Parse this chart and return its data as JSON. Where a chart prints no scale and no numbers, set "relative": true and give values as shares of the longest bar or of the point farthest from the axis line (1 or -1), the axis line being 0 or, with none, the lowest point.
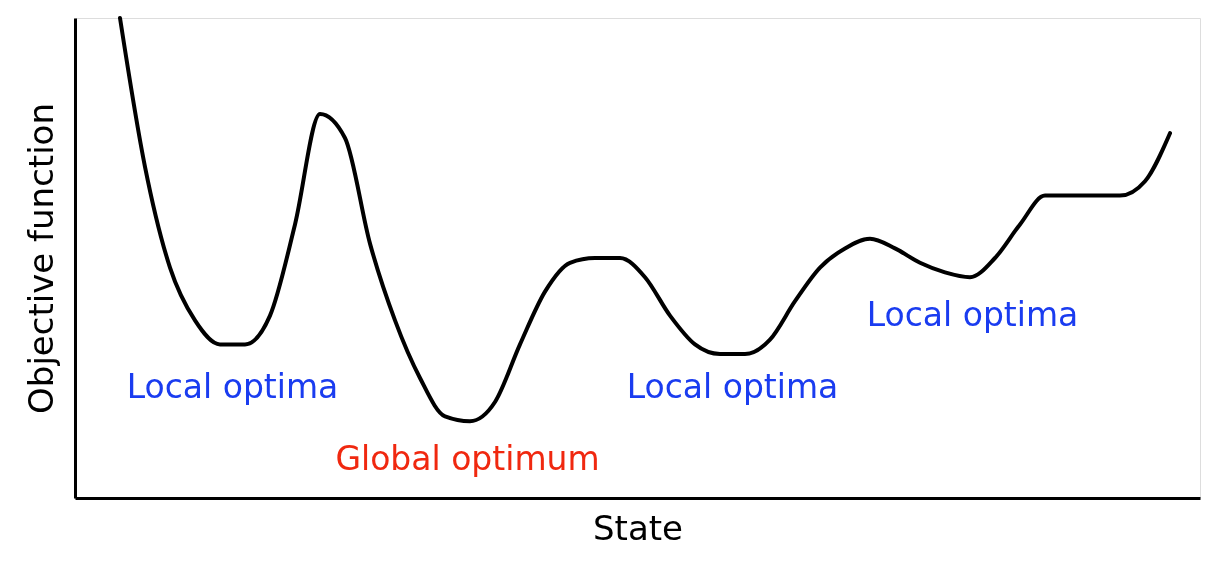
{
  "chart_data": {
    "type": "line",
    "relative": true,
    "xlabel": "State",
    "ylabel": "Objective function",
    "categories": [
      null,
      null,
      null,
      null,
      null,
      null,
      null,
      null,
      null,
      null,
      null,
      null,
      null,
      null,
      null,
      null,
      null,
      null,
      null,
      null,
      null,
      null,
      null,
      null,
      null,
      null,
      null,
      null,
      null,
      null,
      null,
      null,
      null,
      null,
      null,
      null,
      null,
      null,
      null,
      null,
      null,
      null,
      null
    ],
    "series": [
      {
        "color": "#000000",
        "values": [
          1.0,
          0.69,
          0.48,
          0.37,
          0.32,
          0.32,
          0.38,
          0.57,
          0.8,
          0.75,
          0.53,
          0.37,
          0.25,
          0.17,
          0.16,
          0.2,
          0.32,
          0.43,
          0.49,
          0.5,
          0.5,
          0.46,
          0.38,
          0.32,
          0.3,
          0.3,
          0.33,
          0.41,
          0.48,
          0.52,
          0.54,
          0.52,
          0.49,
          0.47,
          0.46,
          0.5,
          0.57,
          0.63,
          0.63,
          0.63,
          0.63,
          0.66,
          0.76
        ]
      }
    ],
    "annotations": [
      "Local optima",
      "Global optimum",
      "Local optima",
      "Local optima"
    ],
    "grid": false,
    "marker": "none",
    "line_style": "solid",
    "tick_labels": false
  }
}
